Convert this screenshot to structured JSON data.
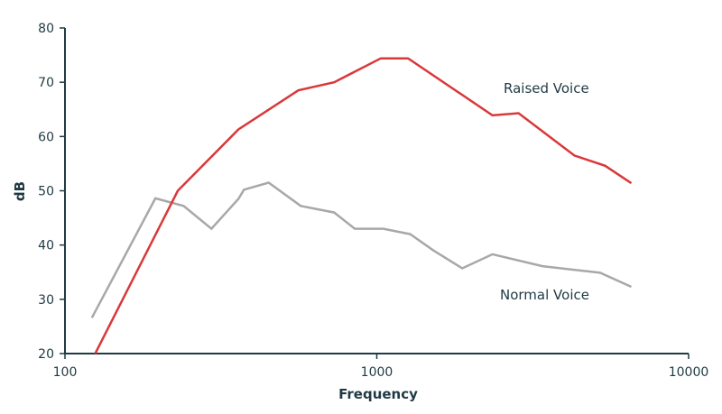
{
  "chart_data": {
    "type": "line",
    "x_scale": "log",
    "xlabel": "Frequency",
    "ylabel": "dB",
    "xlim": [
      100,
      10000
    ],
    "ylim": [
      20,
      80
    ],
    "x_ticks": [
      100,
      1000,
      10000
    ],
    "x_tick_labels": [
      "100",
      "1000",
      "10000"
    ],
    "y_ticks": [
      20,
      30,
      40,
      50,
      60,
      70,
      80
    ],
    "y_tick_labels": [
      "20",
      "30",
      "40",
      "50",
      "60",
      "70",
      "80"
    ],
    "grid": false,
    "legend": "none",
    "series": [
      {
        "name": "Raised Voice",
        "color": "#d9383a",
        "x": [
          125,
          230,
          360,
          560,
          730,
          1030,
          1260,
          2350,
          2850,
          4300,
          5400,
          6550
        ],
        "y": [
          20,
          50,
          61.3,
          68.5,
          70,
          74.4,
          74.4,
          63.9,
          64.3,
          56.5,
          54.6,
          51.4
        ]
      },
      {
        "name": "Normal Voice",
        "color": "#a8a8a8",
        "x": [
          122,
          195,
          240,
          295,
          360,
          375,
          450,
          570,
          730,
          850,
          1050,
          1280,
          1520,
          1880,
          2350,
          3400,
          5200,
          6550
        ],
        "y": [
          26.6,
          48.6,
          47.2,
          43,
          48.5,
          50.2,
          51.5,
          47.2,
          46,
          43,
          43,
          42,
          39,
          35.7,
          38.3,
          36.1,
          34.9,
          32.3
        ]
      }
    ]
  }
}
